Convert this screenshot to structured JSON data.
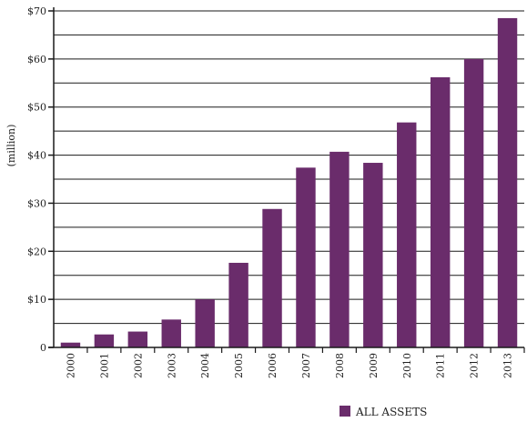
{
  "chart_data": {
    "type": "bar",
    "title": "",
    "xlabel": "",
    "ylabel": "(million)",
    "categories": [
      "2000",
      "2001",
      "2002",
      "2003",
      "2004",
      "2005",
      "2006",
      "2007",
      "2008",
      "2009",
      "2010",
      "2011",
      "2012",
      "2013"
    ],
    "series": [
      {
        "name": "ALL ASSETS",
        "color": "#6a2c6b",
        "values": [
          1,
          2.7,
          3.3,
          5.8,
          10,
          17.6,
          28.8,
          37.4,
          40.7,
          38.4,
          46.8,
          56.2,
          60,
          68.5
        ]
      }
    ],
    "ylim": [
      0,
      70
    ],
    "y_ticks": [
      {
        "value": 0,
        "label": "0"
      },
      {
        "value": 10,
        "label": "$10"
      },
      {
        "value": 20,
        "label": "$20"
      },
      {
        "value": 30,
        "label": "$30"
      },
      {
        "value": 40,
        "label": "$40"
      },
      {
        "value": 50,
        "label": "$50"
      },
      {
        "value": 60,
        "label": "$60"
      },
      {
        "value": 70,
        "label": "$70"
      }
    ],
    "gridline_step": 5,
    "grid": true,
    "legend_position": "bottom-right"
  }
}
